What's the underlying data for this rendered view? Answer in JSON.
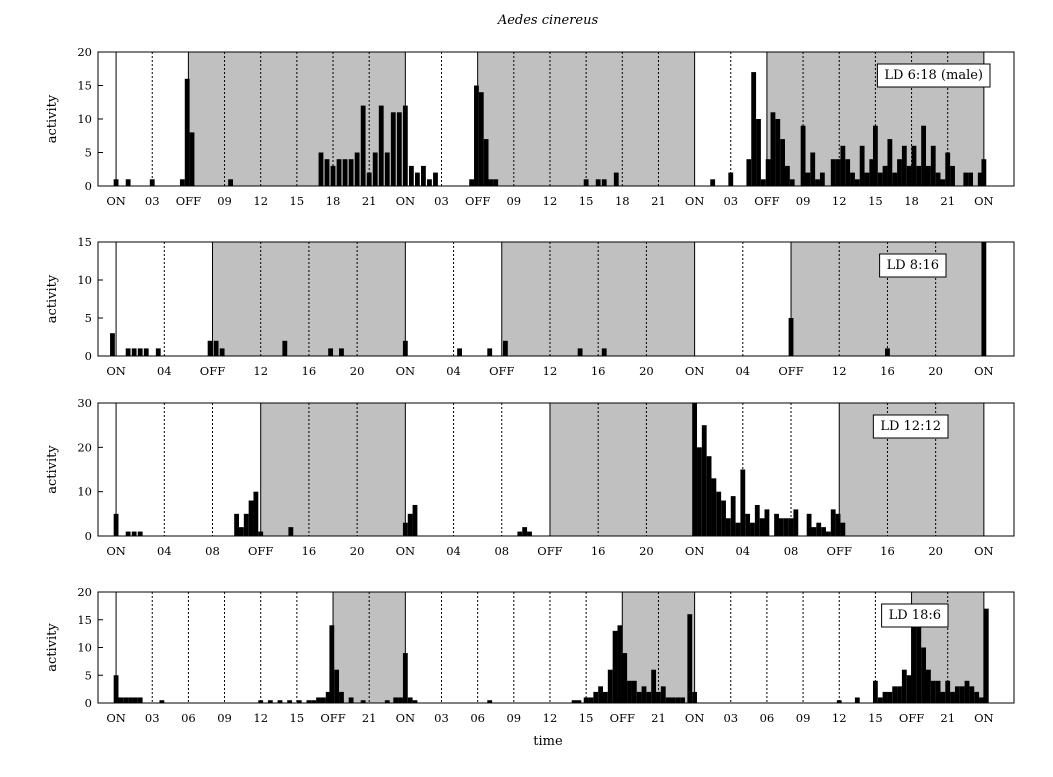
{
  "title": "Aedes cinereus",
  "xlabel": "time",
  "chart_data": [
    {
      "type": "bar",
      "legend": "LD 6:18 (male)",
      "legend_position": "top-right",
      "ylabel": "activity",
      "ylim": [
        0,
        20
      ],
      "yticks": [
        0,
        5,
        10,
        15,
        20
      ],
      "x_range_hours": [
        -1.5,
        74.5
      ],
      "dark_intervals": [
        [
          6,
          24
        ],
        [
          30,
          48
        ],
        [
          54,
          72
        ]
      ],
      "on_lines": [
        0,
        24,
        48,
        72
      ],
      "xticks": [
        {
          "h": 0,
          "label": "ON"
        },
        {
          "h": 3,
          "label": "03"
        },
        {
          "h": 6,
          "label": "OFF"
        },
        {
          "h": 9,
          "label": "09"
        },
        {
          "h": 12,
          "label": "12"
        },
        {
          "h": 15,
          "label": "15"
        },
        {
          "h": 18,
          "label": "18"
        },
        {
          "h": 21,
          "label": "21"
        },
        {
          "h": 24,
          "label": "ON"
        },
        {
          "h": 27,
          "label": "03"
        },
        {
          "h": 30,
          "label": "OFF"
        },
        {
          "h": 33,
          "label": "09"
        },
        {
          "h": 36,
          "label": "12"
        },
        {
          "h": 39,
          "label": "15"
        },
        {
          "h": 42,
          "label": "18"
        },
        {
          "h": 45,
          "label": "21"
        },
        {
          "h": 48,
          "label": "ON"
        },
        {
          "h": 51,
          "label": "03"
        },
        {
          "h": 54,
          "label": "OFF"
        },
        {
          "h": 57,
          "label": "09"
        },
        {
          "h": 60,
          "label": "12"
        },
        {
          "h": 63,
          "label": "15"
        },
        {
          "h": 66,
          "label": "18"
        },
        {
          "h": 69,
          "label": "21"
        },
        {
          "h": 72,
          "label": "ON"
        }
      ],
      "bins": [
        [
          0,
          1
        ],
        [
          1,
          1
        ],
        [
          3,
          1
        ],
        [
          5.5,
          1
        ],
        [
          5.9,
          16
        ],
        [
          6.3,
          8
        ],
        [
          9.5,
          1
        ],
        [
          17,
          5
        ],
        [
          17.5,
          4
        ],
        [
          18,
          3
        ],
        [
          18.5,
          4
        ],
        [
          19,
          4
        ],
        [
          19.5,
          4
        ],
        [
          20,
          5
        ],
        [
          20.5,
          12
        ],
        [
          21,
          2
        ],
        [
          21.5,
          5
        ],
        [
          22,
          12
        ],
        [
          22.5,
          5
        ],
        [
          23,
          11
        ],
        [
          23.5,
          11
        ],
        [
          24,
          12
        ],
        [
          24.5,
          3
        ],
        [
          25,
          2
        ],
        [
          25.5,
          3
        ],
        [
          26,
          1
        ],
        [
          26.5,
          2
        ],
        [
          29.5,
          1
        ],
        [
          29.9,
          15
        ],
        [
          30.3,
          14
        ],
        [
          30.7,
          7
        ],
        [
          31.1,
          1
        ],
        [
          31.5,
          1
        ],
        [
          39,
          1
        ],
        [
          40,
          1
        ],
        [
          40.5,
          1
        ],
        [
          41.5,
          2
        ],
        [
          49.5,
          1
        ],
        [
          51,
          2
        ],
        [
          52.5,
          4
        ],
        [
          52.9,
          17
        ],
        [
          53.3,
          10
        ],
        [
          53.7,
          1
        ],
        [
          54.1,
          4
        ],
        [
          54.5,
          11
        ],
        [
          54.9,
          10
        ],
        [
          55.3,
          7
        ],
        [
          55.7,
          3
        ],
        [
          56.1,
          1
        ],
        [
          57,
          9
        ],
        [
          57.4,
          2
        ],
        [
          57.8,
          5
        ],
        [
          58.2,
          1
        ],
        [
          58.6,
          2
        ],
        [
          59.5,
          4
        ],
        [
          59.9,
          4
        ],
        [
          60.3,
          6
        ],
        [
          60.7,
          4
        ],
        [
          61.1,
          2
        ],
        [
          61.5,
          1
        ],
        [
          61.9,
          6
        ],
        [
          62.3,
          2
        ],
        [
          62.7,
          4
        ],
        [
          63,
          9
        ],
        [
          63.4,
          2
        ],
        [
          63.8,
          3
        ],
        [
          64.2,
          7
        ],
        [
          64.6,
          2
        ],
        [
          65,
          4
        ],
        [
          65.4,
          6
        ],
        [
          65.8,
          3
        ],
        [
          66.2,
          6
        ],
        [
          66.6,
          3
        ],
        [
          67,
          9
        ],
        [
          67.4,
          3
        ],
        [
          67.8,
          6
        ],
        [
          68.2,
          2
        ],
        [
          68.6,
          1
        ],
        [
          69,
          5
        ],
        [
          69.4,
          3
        ],
        [
          70.5,
          2
        ],
        [
          70.9,
          2
        ],
        [
          71.7,
          2
        ],
        [
          72,
          4
        ]
      ]
    },
    {
      "type": "bar",
      "legend": "LD 8:16",
      "legend_position": "top-right",
      "ylabel": "activity",
      "ylim": [
        0,
        15
      ],
      "yticks": [
        0,
        5,
        10,
        15
      ],
      "x_range_hours": [
        -1.5,
        74.5
      ],
      "dark_intervals": [
        [
          8,
          24
        ],
        [
          32,
          48
        ],
        [
          56,
          72
        ]
      ],
      "on_lines": [
        0,
        24,
        48,
        72
      ],
      "xticks": [
        {
          "h": 0,
          "label": "ON"
        },
        {
          "h": 4,
          "label": "04"
        },
        {
          "h": 8,
          "label": "OFF"
        },
        {
          "h": 12,
          "label": "12"
        },
        {
          "h": 16,
          "label": "16"
        },
        {
          "h": 20,
          "label": "20"
        },
        {
          "h": 24,
          "label": "ON"
        },
        {
          "h": 28,
          "label": "04"
        },
        {
          "h": 32,
          "label": "OFF"
        },
        {
          "h": 36,
          "label": "12"
        },
        {
          "h": 40,
          "label": "16"
        },
        {
          "h": 44,
          "label": "20"
        },
        {
          "h": 48,
          "label": "ON"
        },
        {
          "h": 52,
          "label": "04"
        },
        {
          "h": 56,
          "label": "OFF"
        },
        {
          "h": 60,
          "label": "12"
        },
        {
          "h": 64,
          "label": "16"
        },
        {
          "h": 68,
          "label": "20"
        },
        {
          "h": 72,
          "label": "ON"
        }
      ],
      "bins": [
        [
          -0.3,
          3
        ],
        [
          1,
          1
        ],
        [
          1.5,
          1
        ],
        [
          2,
          1
        ],
        [
          2.5,
          1
        ],
        [
          3.5,
          1
        ],
        [
          7.8,
          2
        ],
        [
          8.3,
          2
        ],
        [
          8.8,
          1
        ],
        [
          14,
          2
        ],
        [
          17.8,
          1
        ],
        [
          18.7,
          1
        ],
        [
          24,
          2
        ],
        [
          28.5,
          1
        ],
        [
          31,
          1
        ],
        [
          32.3,
          2
        ],
        [
          38.5,
          1
        ],
        [
          40.5,
          1
        ],
        [
          56,
          5
        ],
        [
          64,
          1
        ],
        [
          72,
          15
        ]
      ]
    },
    {
      "type": "bar",
      "legend": "LD 12:12",
      "legend_position": "top-right",
      "ylabel": "activity",
      "ylim": [
        0,
        30
      ],
      "yticks": [
        0,
        10,
        20,
        30
      ],
      "x_range_hours": [
        -1.5,
        74.5
      ],
      "dark_intervals": [
        [
          12,
          24
        ],
        [
          36,
          48
        ],
        [
          60,
          72
        ]
      ],
      "on_lines": [
        0,
        24,
        48,
        72
      ],
      "xticks": [
        {
          "h": 0,
          "label": "ON"
        },
        {
          "h": 4,
          "label": "04"
        },
        {
          "h": 8,
          "label": "08"
        },
        {
          "h": 12,
          "label": "OFF"
        },
        {
          "h": 16,
          "label": "16"
        },
        {
          "h": 20,
          "label": "20"
        },
        {
          "h": 24,
          "label": "ON"
        },
        {
          "h": 28,
          "label": "04"
        },
        {
          "h": 32,
          "label": "08"
        },
        {
          "h": 36,
          "label": "OFF"
        },
        {
          "h": 40,
          "label": "16"
        },
        {
          "h": 44,
          "label": "20"
        },
        {
          "h": 48,
          "label": "ON"
        },
        {
          "h": 52,
          "label": "04"
        },
        {
          "h": 56,
          "label": "08"
        },
        {
          "h": 60,
          "label": "OFF"
        },
        {
          "h": 64,
          "label": "16"
        },
        {
          "h": 68,
          "label": "20"
        },
        {
          "h": 72,
          "label": "ON"
        }
      ],
      "bins": [
        [
          0,
          5
        ],
        [
          1,
          1
        ],
        [
          1.5,
          1
        ],
        [
          2,
          1
        ],
        [
          10,
          5
        ],
        [
          10.4,
          2
        ],
        [
          10.8,
          5
        ],
        [
          11.2,
          8
        ],
        [
          11.6,
          10
        ],
        [
          12,
          1
        ],
        [
          14.5,
          2
        ],
        [
          24,
          3
        ],
        [
          24.4,
          5
        ],
        [
          24.8,
          7
        ],
        [
          33.5,
          1
        ],
        [
          33.9,
          2
        ],
        [
          34.3,
          1
        ],
        [
          48,
          30
        ],
        [
          48.4,
          20
        ],
        [
          48.8,
          25
        ],
        [
          49.2,
          18
        ],
        [
          49.6,
          13
        ],
        [
          50,
          10
        ],
        [
          50.4,
          8
        ],
        [
          50.8,
          4
        ],
        [
          51.2,
          9
        ],
        [
          51.6,
          3
        ],
        [
          52,
          15
        ],
        [
          52.4,
          5
        ],
        [
          52.8,
          3
        ],
        [
          53.2,
          7
        ],
        [
          53.6,
          4
        ],
        [
          54,
          6
        ],
        [
          54.8,
          5
        ],
        [
          55.2,
          4
        ],
        [
          55.6,
          4
        ],
        [
          56,
          4
        ],
        [
          56.4,
          6
        ],
        [
          57.5,
          5
        ],
        [
          57.9,
          2
        ],
        [
          58.3,
          3
        ],
        [
          58.7,
          2
        ],
        [
          59.1,
          1
        ],
        [
          59.5,
          6
        ],
        [
          59.9,
          5
        ],
        [
          60.3,
          3
        ]
      ]
    },
    {
      "type": "bar",
      "legend": "LD 18:6",
      "legend_position": "top-right",
      "ylabel": "activity",
      "ylim": [
        0,
        20
      ],
      "yticks": [
        0,
        5,
        10,
        15,
        20
      ],
      "x_range_hours": [
        -1.5,
        74.5
      ],
      "dark_intervals": [
        [
          18,
          24
        ],
        [
          42,
          48
        ],
        [
          66,
          72
        ]
      ],
      "on_lines": [
        0,
        24,
        48,
        72
      ],
      "xticks": [
        {
          "h": 0,
          "label": "ON"
        },
        {
          "h": 3,
          "label": "03"
        },
        {
          "h": 6,
          "label": "06"
        },
        {
          "h": 9,
          "label": "09"
        },
        {
          "h": 12,
          "label": "12"
        },
        {
          "h": 15,
          "label": "15"
        },
        {
          "h": 18,
          "label": "OFF"
        },
        {
          "h": 21,
          "label": "21"
        },
        {
          "h": 24,
          "label": "ON"
        },
        {
          "h": 27,
          "label": "03"
        },
        {
          "h": 30,
          "label": "06"
        },
        {
          "h": 33,
          "label": "09"
        },
        {
          "h": 36,
          "label": "12"
        },
        {
          "h": 39,
          "label": "15"
        },
        {
          "h": 42,
          "label": "OFF"
        },
        {
          "h": 45,
          "label": "21"
        },
        {
          "h": 48,
          "label": "ON"
        },
        {
          "h": 51,
          "label": "03"
        },
        {
          "h": 54,
          "label": "06"
        },
        {
          "h": 57,
          "label": "09"
        },
        {
          "h": 60,
          "label": "12"
        },
        {
          "h": 63,
          "label": "15"
        },
        {
          "h": 66,
          "label": "OFF"
        },
        {
          "h": 69,
          "label": "21"
        },
        {
          "h": 72,
          "label": "ON"
        }
      ],
      "bins": [
        [
          0,
          5
        ],
        [
          0.4,
          1
        ],
        [
          0.8,
          1
        ],
        [
          1.2,
          1
        ],
        [
          1.6,
          1
        ],
        [
          2,
          1
        ],
        [
          3.8,
          0.5
        ],
        [
          12,
          0.5
        ],
        [
          12.8,
          0.5
        ],
        [
          13.6,
          0.5
        ],
        [
          14.4,
          0.5
        ],
        [
          15.2,
          0.5
        ],
        [
          16,
          0.5
        ],
        [
          16.4,
          0.5
        ],
        [
          16.8,
          1
        ],
        [
          17.2,
          1
        ],
        [
          17.6,
          2
        ],
        [
          17.9,
          14
        ],
        [
          18.3,
          6
        ],
        [
          18.7,
          2
        ],
        [
          19.5,
          1
        ],
        [
          20.5,
          0.5
        ],
        [
          22.5,
          0.5
        ],
        [
          23.2,
          1
        ],
        [
          23.6,
          1
        ],
        [
          24,
          9
        ],
        [
          24.4,
          1
        ],
        [
          24.8,
          0.5
        ],
        [
          31,
          0.5
        ],
        [
          38,
          0.5
        ],
        [
          38.4,
          0.5
        ],
        [
          39,
          1
        ],
        [
          39.4,
          1
        ],
        [
          39.8,
          2
        ],
        [
          40.2,
          3
        ],
        [
          40.6,
          2
        ],
        [
          41,
          6
        ],
        [
          41.4,
          13
        ],
        [
          41.8,
          14
        ],
        [
          42.2,
          9
        ],
        [
          42.6,
          4
        ],
        [
          43,
          4
        ],
        [
          43.4,
          2
        ],
        [
          43.8,
          3
        ],
        [
          44.2,
          2
        ],
        [
          44.6,
          6
        ],
        [
          45,
          2
        ],
        [
          45.4,
          3
        ],
        [
          45.8,
          1
        ],
        [
          46.2,
          1
        ],
        [
          46.6,
          1
        ],
        [
          47,
          1
        ],
        [
          47.6,
          16
        ],
        [
          48,
          2
        ],
        [
          60,
          0.5
        ],
        [
          61.5,
          1
        ],
        [
          63,
          4
        ],
        [
          63.4,
          1
        ],
        [
          63.8,
          2
        ],
        [
          64.2,
          2
        ],
        [
          64.6,
          3
        ],
        [
          65,
          3
        ],
        [
          65.4,
          6
        ],
        [
          65.8,
          5
        ],
        [
          66.2,
          14
        ],
        [
          66.6,
          14
        ],
        [
          67,
          10
        ],
        [
          67.4,
          6
        ],
        [
          67.8,
          4
        ],
        [
          68.2,
          4
        ],
        [
          68.6,
          2
        ],
        [
          69,
          4
        ],
        [
          69.4,
          2
        ],
        [
          69.8,
          3
        ],
        [
          70.2,
          3
        ],
        [
          70.6,
          4
        ],
        [
          71,
          3
        ],
        [
          71.4,
          2
        ],
        [
          71.8,
          1
        ],
        [
          72.2,
          17
        ]
      ]
    }
  ]
}
